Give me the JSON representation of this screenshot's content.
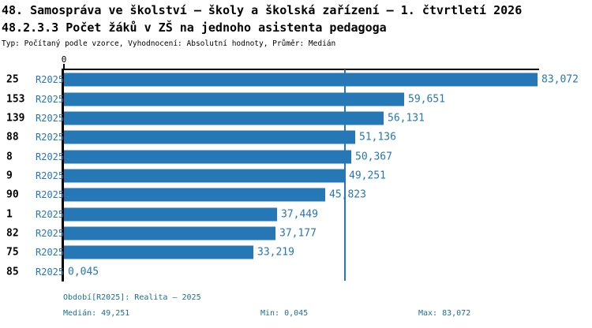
{
  "header": {
    "title": "48. Samospráva ve školství – školy a školská zařízení – 1. čtvrtletí 2026",
    "subtitle": "48.2.3.3 Počet žáků v ZŠ na jednoho asistenta pedagoga",
    "meta": "Typ: Počítaný podle vzorce, Vyhodnocení: Absolutní hodnoty, Průměr: Medián"
  },
  "chart_data": {
    "type": "bar",
    "orientation": "horizontal",
    "title": "48.2.3.3 Počet žáků v ZŠ na jednoho asistenta pedagoga",
    "xlabel": "",
    "ylabel": "",
    "x_axis": {
      "zero_label": "0",
      "position": "top",
      "xlim": [
        0,
        90
      ],
      "grid": false
    },
    "series_label": "R2025",
    "rows": [
      {
        "id": "25",
        "series": "R2025",
        "value": 83.072,
        "display": "83,072"
      },
      {
        "id": "153",
        "series": "R2025",
        "value": 59.651,
        "display": "59,651"
      },
      {
        "id": "139",
        "series": "R2025",
        "value": 56.131,
        "display": "56,131"
      },
      {
        "id": "88",
        "series": "R2025",
        "value": 51.136,
        "display": "51,136"
      },
      {
        "id": "8",
        "series": "R2025",
        "value": 50.367,
        "display": "50,367"
      },
      {
        "id": "9",
        "series": "R2025",
        "value": 49.251,
        "display": "49,251"
      },
      {
        "id": "90",
        "series": "R2025",
        "value": 45.823,
        "display": "45,823"
      },
      {
        "id": "1",
        "series": "R2025",
        "value": 37.449,
        "display": "37,449"
      },
      {
        "id": "82",
        "series": "R2025",
        "value": 37.177,
        "display": "37,177"
      },
      {
        "id": "75",
        "series": "R2025",
        "value": 33.219,
        "display": "33,219"
      },
      {
        "id": "85",
        "series": "R2025",
        "value": 0.045,
        "display": "0,045"
      }
    ],
    "median_line": {
      "value": 49.251,
      "display": "49,251"
    },
    "colors": {
      "bar": "#2577B5",
      "value_label": "#2577B5",
      "series_label": "#2577B5",
      "median_line": "#2577B5",
      "footer_text": "#1A7095",
      "axis": "#000000"
    }
  },
  "footer": {
    "period": "Období[R2025]: Realita – 2025",
    "median": "Medián: 49,251",
    "min": "Min: 0,045",
    "max": "Max: 83,072"
  }
}
